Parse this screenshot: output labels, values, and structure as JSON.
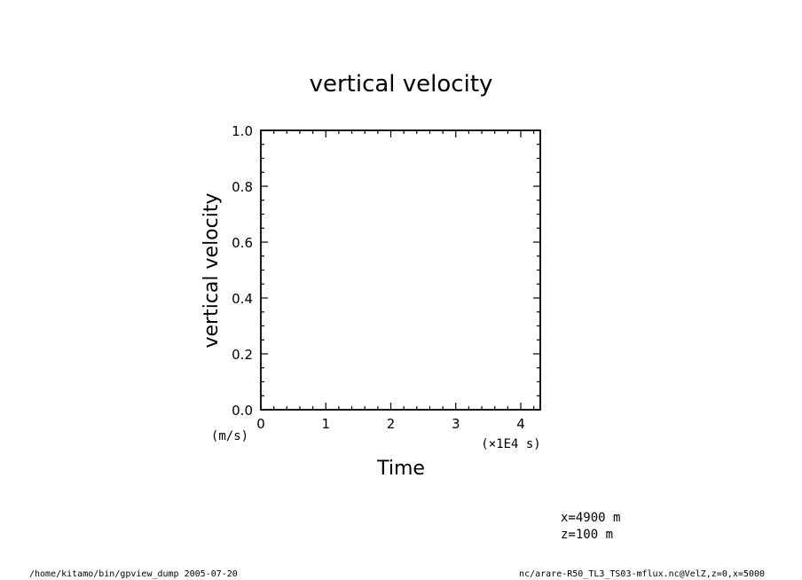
{
  "chart_data": {
    "type": "line",
    "title": "vertical velocity",
    "xlabel": "Time",
    "ylabel": "vertical velocity",
    "x_unit": "(×1E4 s)",
    "y_unit": "(m/s)",
    "xlim": [
      0,
      4.3
    ],
    "ylim": [
      0.0,
      1.0
    ],
    "x_ticks": [
      "0",
      "1",
      "2",
      "3",
      "4"
    ],
    "x_tick_values": [
      0,
      1,
      2,
      3,
      4
    ],
    "y_ticks": [
      "0.0",
      "0.2",
      "0.4",
      "0.6",
      "0.8",
      "1.0"
    ],
    "y_tick_values": [
      0.0,
      0.2,
      0.4,
      0.6,
      0.8,
      1.0
    ],
    "series": [],
    "grid": false
  },
  "annotations": {
    "x_position": "x=4900  m",
    "z_position": "z=100  m"
  },
  "footer": {
    "left": "/home/kitamo/bin/gpview_dump  2005-07-20",
    "right": "nc/arare-R50_TL3_TS03-mflux.nc@VelZ,z=0,x=5000"
  }
}
